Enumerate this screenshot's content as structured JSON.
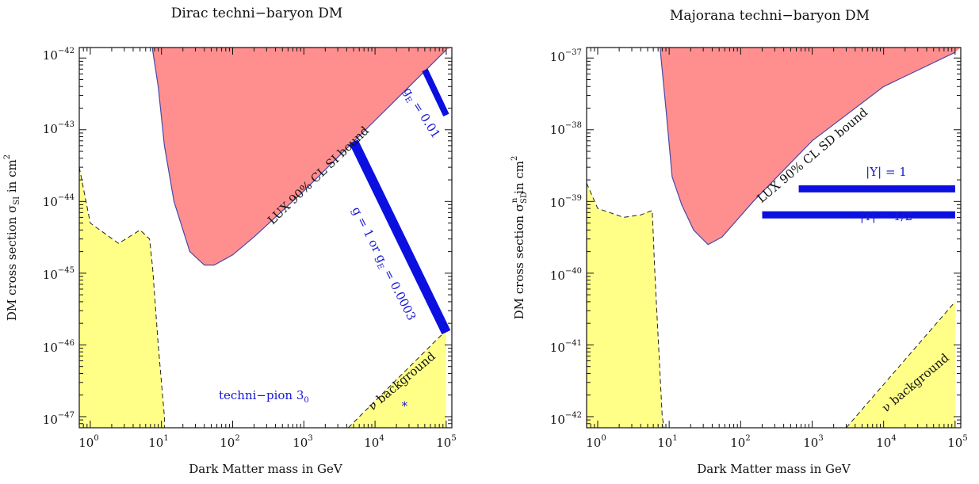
{
  "chart_data": [
    {
      "type": "area",
      "title": "Dirac techni−baryon DM",
      "xlabel": "Dark Matter mass in GeV",
      "ylabel_prefix": "DM cross section σ",
      "ylabel_sub": "SI",
      "ylabel_suffix": " in cm",
      "ylabel_exp": "2",
      "xscale": "log",
      "yscale": "log",
      "xlim": [
        0.7,
        120000
      ],
      "ylim": [
        7e-48,
        1.4e-42
      ],
      "x_ticks": [
        {
          "base": "10",
          "exp": "0"
        },
        {
          "base": "10",
          "exp": "1"
        },
        {
          "base": "10",
          "exp": "2"
        },
        {
          "base": "10",
          "exp": "3"
        },
        {
          "base": "10",
          "exp": "4"
        },
        {
          "base": "10",
          "exp": "5"
        }
      ],
      "y_ticks": [
        {
          "base": "10",
          "exp": "−42"
        },
        {
          "base": "10",
          "exp": "−43"
        },
        {
          "base": "10",
          "exp": "−44"
        },
        {
          "base": "10",
          "exp": "−45"
        },
        {
          "base": "10",
          "exp": "−46"
        },
        {
          "base": "10",
          "exp": "−47"
        }
      ],
      "regions": [
        {
          "name": "LUX 90% CL SI bound",
          "label": "LUX 90% CL SI bound",
          "color": "#ff8f8f",
          "edge": "#4848a8",
          "points": [
            [
              7.5,
              1.4e-42
            ],
            [
              7.5,
              1.3e-42
            ],
            [
              9,
              4e-43
            ],
            [
              11,
              6e-44
            ],
            [
              15,
              1e-44
            ],
            [
              25,
              2e-45
            ],
            [
              40,
              1.3e-45
            ],
            [
              55,
              1.3e-45
            ],
            [
              100,
              1.8e-45
            ],
            [
              200,
              3.2e-45
            ],
            [
              1000,
              1.4e-44
            ],
            [
              10000,
              1.35e-43
            ],
            [
              100000,
              1.3e-42
            ],
            [
              120000,
              1.4e-42
            ]
          ]
        },
        {
          "name": "low-mass exclusion",
          "color": "#ffff88",
          "points": [
            [
              0.7,
              3e-44
            ],
            [
              1,
              5e-45
            ],
            [
              2.5,
              2.6e-45
            ],
            [
              5,
              4e-45
            ],
            [
              6.8,
              3e-45
            ],
            [
              7.5,
              1.2e-45
            ],
            [
              9,
              1e-46
            ],
            [
              11,
              1e-47
            ],
            [
              11,
              7e-48
            ],
            [
              0.7,
              7e-48
            ]
          ]
        },
        {
          "name": "neutrino background",
          "label": "ν background",
          "color": "#ffff88",
          "points": [
            [
              4200,
              7e-48
            ],
            [
              100000,
              1.6e-46
            ],
            [
              100000,
              7e-48
            ]
          ]
        }
      ],
      "lines": [
        {
          "label": "g = 1 or g",
          "label_sub": "E",
          "label_tail": " = 0.0003",
          "color": "#0b10e0",
          "points": [
            [
              5000,
              6.8e-44
            ],
            [
              100000,
              1.5e-46
            ]
          ]
        },
        {
          "label": "g",
          "label_sub": "E",
          "label_tail": " = 0.01",
          "color": "#0b10e0",
          "points": [
            [
              50000,
              6.8e-43
            ],
            [
              100000,
              1.6e-43
            ]
          ]
        }
      ],
      "markers": [
        {
          "label": "techni−pion 3",
          "label_sub": "0",
          "symbol": "*",
          "color": "#1818d0",
          "x": 26000,
          "y": 1.45e-47
        }
      ]
    },
    {
      "type": "area",
      "title": "Majorana techni−baryon DM",
      "xlabel": "Dark Matter mass in GeV",
      "ylabel_prefix": "DM cross section σ",
      "ylabel_sub": "SD",
      "ylabel_supn": "n",
      "ylabel_suffix": " in cm",
      "ylabel_exp": "2",
      "xscale": "log",
      "yscale": "log",
      "xlim": [
        0.7,
        120000
      ],
      "ylim": [
        7e-43,
        1.4e-37
      ],
      "x_ticks": [
        {
          "base": "10",
          "exp": "0"
        },
        {
          "base": "10",
          "exp": "1"
        },
        {
          "base": "10",
          "exp": "2"
        },
        {
          "base": "10",
          "exp": "3"
        },
        {
          "base": "10",
          "exp": "4"
        },
        {
          "base": "10",
          "exp": "5"
        }
      ],
      "y_ticks": [
        {
          "base": "10",
          "exp": "−37"
        },
        {
          "base": "10",
          "exp": "−38"
        },
        {
          "base": "10",
          "exp": "−39"
        },
        {
          "base": "10",
          "exp": "−40"
        },
        {
          "base": "10",
          "exp": "−41"
        },
        {
          "base": "10",
          "exp": "−42"
        }
      ],
      "regions": [
        {
          "name": "LUX 90% CL SD bound",
          "label": "LUX 90% CL SD bound",
          "color": "#ff8f8f",
          "edge": "#4848a8",
          "points": [
            [
              7.5,
              1.4e-37
            ],
            [
              7.5,
              1.3e-37
            ],
            [
              9,
              2e-38
            ],
            [
              11,
              2.2e-39
            ],
            [
              15,
              9e-40
            ],
            [
              22,
              4e-40
            ],
            [
              35,
              2.5e-40
            ],
            [
              55,
              3.2e-40
            ],
            [
              150,
              1e-39
            ],
            [
              1000,
              7e-39
            ],
            [
              10000,
              4e-38
            ],
            [
              100000,
              1.2e-37
            ],
            [
              120000,
              1.4e-37
            ]
          ]
        },
        {
          "name": "low-mass exclusion",
          "color": "#ffff88",
          "points": [
            [
              0.7,
              1.8e-39
            ],
            [
              1,
              8e-40
            ],
            [
              2.3,
              6e-40
            ],
            [
              4,
              6.5e-40
            ],
            [
              5.8,
              7.5e-40
            ],
            [
              6.3,
              1e-40
            ],
            [
              8,
              1e-42
            ],
            [
              8.5,
              7e-43
            ],
            [
              0.7,
              7e-43
            ]
          ]
        },
        {
          "name": "neutrino background",
          "label": "ν background",
          "color": "#ffff88",
          "points": [
            [
              3000,
              7e-43
            ],
            [
              100000,
              4e-41
            ],
            [
              100000,
              7e-43
            ]
          ]
        }
      ],
      "lines": [
        {
          "label": "|Y| = 1",
          "color": "#0b10e0",
          "points": [
            [
              650,
              1.5e-39
            ],
            [
              100000,
              1.5e-39
            ]
          ]
        },
        {
          "label": "|Y| = 1/2",
          "color": "#0b10e0",
          "points": [
            [
              200,
              6.5e-40
            ],
            [
              100000,
              6.5e-40
            ]
          ]
        }
      ],
      "markers": []
    }
  ]
}
